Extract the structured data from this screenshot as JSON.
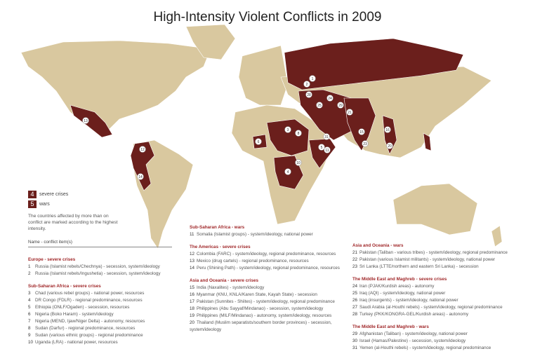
{
  "title": "High-Intensity Violent Conflicts in 2009",
  "legend": [
    {
      "number": "4",
      "label": "severe crises"
    },
    {
      "number": "5",
      "label": "wars"
    }
  ],
  "note": "The countries affected by more than on conflict  are marked according to the highest intensity.",
  "list_header": "Name - conflict item(s)",
  "sections": [
    {
      "heading": "Europe - severe crises",
      "items": [
        {
          "number": "1",
          "text": "Russia (Islamist rebels/Chechnya) - secession, system/ideology"
        },
        {
          "number": "2",
          "text": "Russia (Islamist rebels/Ingushetia) - secession, system/ideology"
        }
      ]
    },
    {
      "heading": "Sub-Saharan Africa - severe crises",
      "items": [
        {
          "number": "3",
          "text": "Chad (various rebel groups) - national power, resources"
        },
        {
          "number": "4",
          "text": "DR Congo (FDLR) - regional predominance, resources"
        },
        {
          "number": "5",
          "text": "Ethiopia (ONLF/Ogaden) - secession, resources"
        },
        {
          "number": "6",
          "text": "Nigeria (Boko Haram) - system/ideology"
        },
        {
          "number": "7",
          "text": "Nigeria (MEND, Ijaw/Niger Delta) - autonomy, resources"
        },
        {
          "number": "8",
          "text": "Sudan (Darfur) - regional predominance, resources"
        },
        {
          "number": "9",
          "text": "Sudan (various ethnic groups) - regional predominance"
        },
        {
          "number": "10",
          "text": "Uganda (LRA) - national power, resources"
        }
      ]
    },
    {
      "heading": "Sub-Saharan Africa - wars",
      "items": [
        {
          "number": "11",
          "text": "Somalia (Islamist groups) - system/ideology, national power"
        }
      ]
    },
    {
      "heading": "The Americas - severe crises",
      "items": [
        {
          "number": "12",
          "text": "Colombia (FARC) - system/ideology, regional predominance, resources"
        },
        {
          "number": "13",
          "text": "Mexico (drug cartels) - regional predominance, resources"
        },
        {
          "number": "14",
          "text": "Peru (Shining Path) - system/ideology, regional predominance, resources"
        }
      ]
    },
    {
      "heading": "Asia and Oceania - severe crises",
      "items": [
        {
          "number": "15",
          "text": "India (Naxalites) - system/ideology"
        },
        {
          "number": "16",
          "text": "Myanmar (KNU, KNLA/Karen State, Kayah State) - secession"
        },
        {
          "number": "17",
          "text": "Pakistan (Sunnites - Shiites) - system/ideology, regional predominance"
        },
        {
          "number": "18",
          "text": "Philippines (Abu Sayyaf/Mindanao) - secession, system/ideology"
        },
        {
          "number": "19",
          "text": "Philippines (MILF/Mindanao) - autonomy, system/ideology, resources"
        },
        {
          "number": "20",
          "text": "Thailand (Muslim separatists/southern border provinces) - secession, system/ideology"
        }
      ]
    },
    {
      "heading": "Asia and Oceania - wars",
      "items": [
        {
          "number": "21",
          "text": "Pakistan (Taliban - various tribes) - system/ideology, regional predominance"
        },
        {
          "number": "22",
          "text": "Pakistan (various Islamist militants) - system/ideology, national power"
        },
        {
          "number": "23",
          "text": "Sri Lanka (LTTE/northern and eastern Sri Lanka) - secession"
        }
      ]
    },
    {
      "heading": "The Middle East and Maghreb - severe crises",
      "items": [
        {
          "number": "24",
          "text": "Iran (PJAK/Kurdish areas) - autonomy"
        },
        {
          "number": "25",
          "text": "Iraq (AQI) - system/ideology, national power"
        },
        {
          "number": "26",
          "text": "Iraq (insurgents) - system/ideology, national power"
        },
        {
          "number": "27",
          "text": "Saudi Arabia (al-Houthi rebels) - system/ideology, regional predominance"
        },
        {
          "number": "28",
          "text": "Turkey (PKK/KONGRA-GEL/Kurdish areas) - autonomy"
        }
      ]
    },
    {
      "heading": "The Middle East and Maghreb - wars",
      "items": [
        {
          "number": "29",
          "text": "Afghanistan (Taliban) - system/ideology, national power"
        },
        {
          "number": "30",
          "text": "Israel (Hamas/Palestine) - secession, system/ideology"
        },
        {
          "number": "31",
          "text": "Yemen (al-Houthi rebels) - system/ideology, regional predominance"
        }
      ]
    }
  ]
}
